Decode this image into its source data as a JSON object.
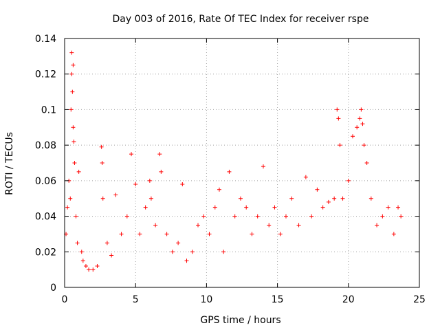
{
  "chart_data": {
    "type": "scatter",
    "title": "Day 003 of 2016, Rate Of TEC Index for receiver rspe",
    "xlabel": "GPS time / hours",
    "ylabel": "ROTI / TECUs",
    "xlim": [
      0,
      25
    ],
    "ylim": [
      0,
      0.14
    ],
    "x_ticks": [
      0,
      5,
      10,
      15,
      20,
      25
    ],
    "x_tick_labels": [
      "0",
      "5",
      "10",
      "15",
      "20",
      "25"
    ],
    "y_ticks": [
      0,
      0.02,
      0.04,
      0.06,
      0.08,
      0.1,
      0.12,
      0.14
    ],
    "y_tick_labels": [
      "0",
      "0.02",
      "0.04",
      "0.06",
      "0.08",
      "0.1",
      "0.12",
      "0.14"
    ],
    "grid": true,
    "marker": "+",
    "colors": {
      "points": "#ff0000",
      "grid": "#a0a0a0",
      "axes": "#000000"
    },
    "series": [
      {
        "name": "ROTI",
        "x": [
          0.1,
          0.2,
          0.3,
          0.4,
          0.45,
          0.5,
          0.5,
          0.55,
          0.6,
          0.6,
          0.65,
          0.7,
          0.8,
          0.9,
          1.0,
          1.2,
          1.3,
          1.5,
          1.7,
          2.0,
          2.3,
          2.6,
          2.65,
          2.7,
          3.0,
          3.3,
          3.6,
          4.0,
          4.4,
          4.7,
          5.0,
          5.3,
          5.7,
          6.0,
          6.1,
          6.4,
          6.7,
          6.8,
          7.2,
          7.6,
          8.0,
          8.3,
          8.6,
          9.0,
          9.4,
          9.8,
          10.2,
          10.6,
          10.9,
          11.2,
          11.6,
          12.0,
          12.4,
          12.8,
          13.2,
          13.6,
          14.0,
          14.4,
          14.8,
          15.2,
          15.6,
          16.0,
          16.5,
          17.0,
          17.4,
          17.8,
          18.2,
          18.6,
          19.0,
          19.2,
          19.3,
          19.4,
          19.6,
          20.0,
          20.3,
          20.6,
          20.8,
          20.9,
          21.0,
          21.1,
          21.3,
          21.6,
          22.0,
          22.4,
          22.8,
          23.2,
          23.5,
          23.7
        ],
        "y": [
          0.03,
          0.045,
          0.06,
          0.05,
          0.1,
          0.12,
          0.132,
          0.11,
          0.125,
          0.09,
          0.082,
          0.07,
          0.04,
          0.025,
          0.065,
          0.02,
          0.015,
          0.012,
          0.01,
          0.01,
          0.012,
          0.079,
          0.07,
          0.05,
          0.025,
          0.018,
          0.052,
          0.03,
          0.04,
          0.075,
          0.058,
          0.03,
          0.045,
          0.06,
          0.05,
          0.035,
          0.075,
          0.065,
          0.03,
          0.02,
          0.025,
          0.058,
          0.015,
          0.02,
          0.035,
          0.04,
          0.03,
          0.045,
          0.055,
          0.02,
          0.065,
          0.04,
          0.05,
          0.045,
          0.03,
          0.04,
          0.068,
          0.035,
          0.045,
          0.03,
          0.04,
          0.05,
          0.035,
          0.062,
          0.04,
          0.055,
          0.045,
          0.048,
          0.05,
          0.1,
          0.095,
          0.08,
          0.05,
          0.06,
          0.085,
          0.09,
          0.095,
          0.1,
          0.092,
          0.08,
          0.07,
          0.05,
          0.035,
          0.04,
          0.045,
          0.03,
          0.045,
          0.04
        ]
      }
    ]
  }
}
